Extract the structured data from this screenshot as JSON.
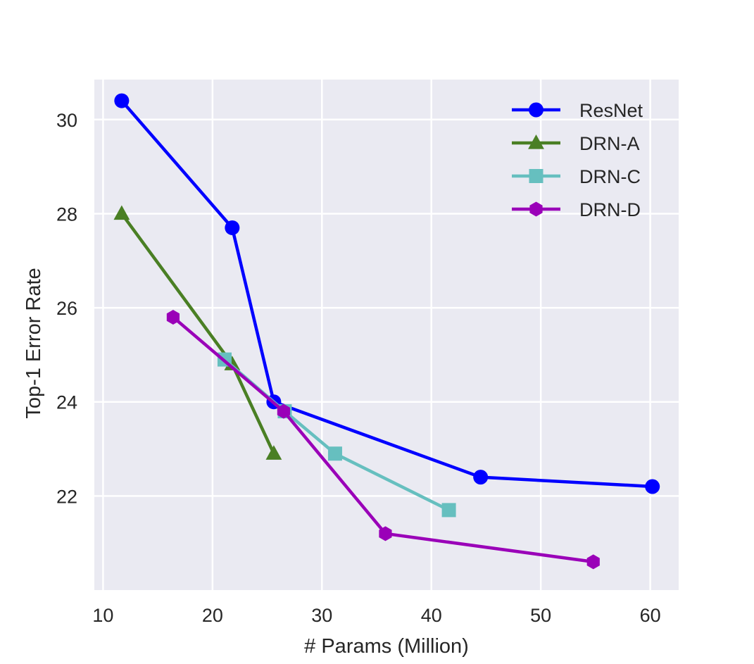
{
  "chart_data": {
    "type": "line",
    "title": "",
    "xlabel": "# Params (Million)",
    "ylabel": "Top-1 Error Rate",
    "xlim": [
      9.2,
      62.6
    ],
    "ylim": [
      20.0,
      30.85
    ],
    "xticks": [
      10,
      20,
      30,
      40,
      50,
      60
    ],
    "yticks": [
      22,
      24,
      26,
      28,
      30
    ],
    "grid": true,
    "legend_position": "top-right",
    "background": "#eaeaf2",
    "series": [
      {
        "name": "ResNet",
        "color": "#0000ff",
        "marker": "circle",
        "x": [
          11.7,
          21.8,
          25.6,
          44.5,
          60.2
        ],
        "y": [
          30.4,
          27.7,
          24.0,
          22.4,
          22.2
        ]
      },
      {
        "name": "DRN-A",
        "color": "#4a7f24",
        "marker": "triangle",
        "x": [
          11.7,
          21.8,
          25.6
        ],
        "y": [
          28.0,
          24.8,
          22.9
        ]
      },
      {
        "name": "DRN-C",
        "color": "#66bfbf",
        "marker": "square",
        "x": [
          21.1,
          26.6,
          31.2,
          41.6
        ],
        "y": [
          24.9,
          23.8,
          22.9,
          21.7
        ]
      },
      {
        "name": "DRN-D",
        "color": "#9a00b8",
        "marker": "hexagon",
        "x": [
          16.4,
          26.5,
          35.8,
          54.8
        ],
        "y": [
          25.8,
          23.8,
          21.2,
          20.6
        ]
      }
    ]
  }
}
